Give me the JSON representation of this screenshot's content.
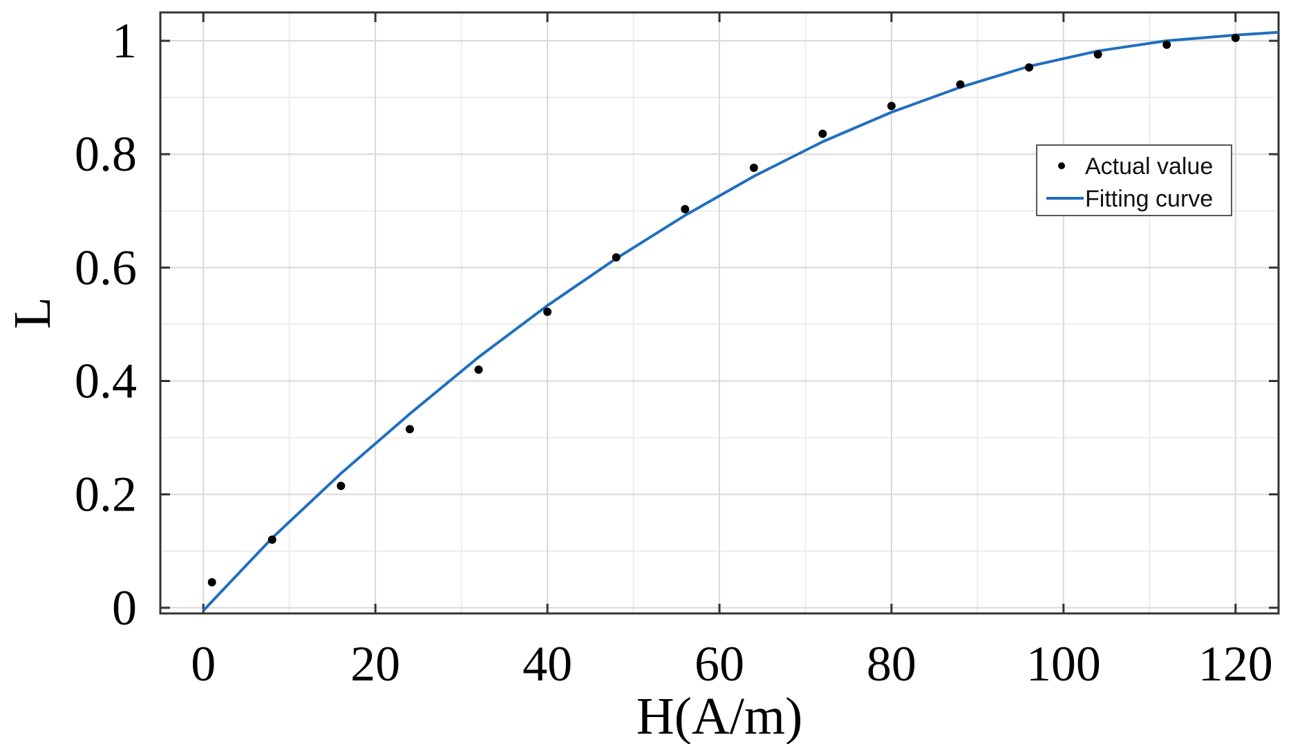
{
  "chart_data": {
    "type": "scatter",
    "xlabel": "H(A/m)",
    "ylabel": "L",
    "xlim": [
      -5,
      125
    ],
    "ylim": [
      -0.01,
      1.05
    ],
    "xticks": [
      0,
      20,
      40,
      60,
      80,
      100,
      120
    ],
    "xtick_labels": [
      "0",
      "20",
      "40",
      "60",
      "80",
      "100",
      "120"
    ],
    "yticks": [
      0,
      0.2,
      0.4,
      0.6,
      0.8,
      1
    ],
    "ytick_labels": [
      "0",
      "0.2",
      "0.4",
      "0.6",
      "0.8",
      "1"
    ],
    "grid": true,
    "legend_position": "right",
    "series": [
      {
        "name": "Actual value",
        "kind": "points",
        "color": "#000000",
        "x": [
          1,
          8,
          16,
          24,
          32,
          40,
          48,
          56,
          64,
          72,
          80,
          88,
          96,
          104,
          112,
          120
        ],
        "y": [
          0.045,
          0.12,
          0.215,
          0.315,
          0.42,
          0.522,
          0.618,
          0.703,
          0.776,
          0.836,
          0.885,
          0.923,
          0.953,
          0.976,
          0.993,
          1.005
        ]
      },
      {
        "name": "Fitting curve",
        "kind": "line",
        "color": "#1f6fc0",
        "x": [
          0,
          8,
          16,
          24,
          32,
          40,
          48,
          56,
          64,
          72,
          80,
          88,
          96,
          104,
          112,
          120,
          125
        ],
        "y": [
          -0.005,
          0.123,
          0.237,
          0.342,
          0.442,
          0.533,
          0.616,
          0.692,
          0.761,
          0.822,
          0.874,
          0.918,
          0.955,
          0.982,
          1.0,
          1.01,
          1.015
        ]
      }
    ]
  }
}
